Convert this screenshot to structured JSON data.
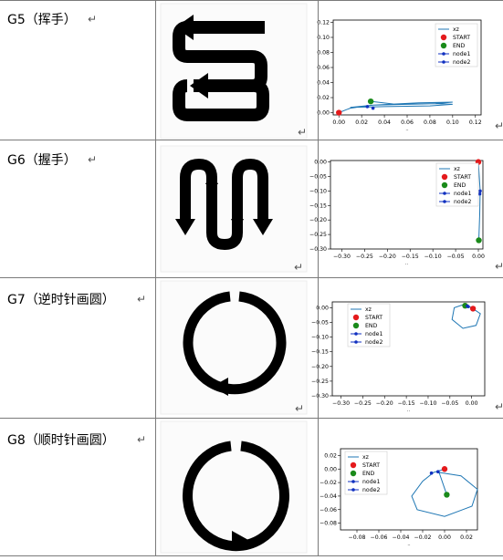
{
  "rows": [
    {
      "label": "G5（挥手）",
      "para_mark": "↵",
      "chart": {
        "type": "line",
        "xticks": [
          "0.00",
          "0.02",
          "0.04",
          "0.06",
          "0.08",
          "0.10",
          "0.12"
        ],
        "yticks": [
          "0.12",
          "0.10",
          "0.08",
          "0.06",
          "0.04",
          "0.02",
          "0.00"
        ],
        "xlim": [
          -0.005,
          0.125
        ],
        "ylim": [
          -0.003,
          0.123
        ],
        "legend": [
          "xz",
          "START",
          "END",
          "node1",
          "node2"
        ],
        "xlabel": "..",
        "series_xz": [
          [
            0.0,
            0.0
          ],
          [
            0.01,
            0.006
          ],
          [
            0.03,
            0.01
          ],
          [
            0.06,
            0.011
          ],
          [
            0.085,
            0.012
          ],
          [
            0.1,
            0.011
          ],
          [
            0.08,
            0.009
          ],
          [
            0.04,
            0.008
          ],
          [
            0.01,
            0.007
          ],
          [
            0.03,
            0.01
          ],
          [
            0.07,
            0.013
          ],
          [
            0.1,
            0.014
          ],
          [
            0.085,
            0.012
          ],
          [
            0.05,
            0.011
          ],
          [
            0.028,
            0.015
          ]
        ],
        "start": [
          0.0,
          0.0
        ],
        "end": [
          0.028,
          0.015
        ],
        "node1": [
          0.025,
          0.008
        ],
        "node2": [
          0.03,
          0.006
        ]
      }
    },
    {
      "label": "G6（握手）",
      "para_mark": "↵",
      "chart": {
        "type": "line",
        "xticks": [
          "−0.30",
          "−0.25",
          "−0.20",
          "−0.15",
          "−0.10",
          "−0.05",
          "0.00"
        ],
        "yticks": [
          "0.00",
          "−0.05",
          "−0.10",
          "−0.15",
          "−0.20",
          "−0.25",
          "−0.30"
        ],
        "xlim": [
          -0.325,
          0.01
        ],
        "ylim": [
          -0.3,
          0.005
        ],
        "legend": [
          "xz",
          "START",
          "END",
          "node1",
          "node2"
        ],
        "xlabel": "..",
        "series_xz": [
          [
            0.0,
            0.0
          ],
          [
            0.002,
            -0.05
          ],
          [
            0.004,
            -0.1
          ],
          [
            0.003,
            -0.18
          ],
          [
            0.001,
            -0.27
          ]
        ],
        "start": [
          0.0,
          0.0
        ],
        "end": [
          0.001,
          -0.27
        ],
        "node1": [
          0.004,
          -0.1
        ],
        "node2": [
          0.003,
          -0.11
        ]
      }
    },
    {
      "label": "G7（逆时针画圆）",
      "para_mark": "↵",
      "chart": {
        "type": "line",
        "xticks": [
          "−0.30",
          "−0.25",
          "−0.20",
          "−0.15",
          "−0.10",
          "−0.05",
          "0.00"
        ],
        "yticks": [
          "0.00",
          "−0.05",
          "−0.10",
          "−0.15",
          "−0.20",
          "−0.25",
          "−0.30"
        ],
        "xlim": [
          -0.32,
          0.03
        ],
        "ylim": [
          -0.3,
          0.02
        ],
        "legend": [
          "xz",
          "START",
          "END",
          "node1",
          "node2"
        ],
        "xlabel": "..",
        "series_xz": [
          [
            0.0,
            0.0
          ],
          [
            -0.02,
            0.01
          ],
          [
            -0.04,
            0.0
          ],
          [
            -0.045,
            -0.04
          ],
          [
            -0.02,
            -0.07
          ],
          [
            0.01,
            -0.06
          ],
          [
            0.02,
            -0.02
          ],
          [
            0.0,
            0.0
          ],
          [
            -0.015,
            0.01
          ]
        ],
        "start": [
          0.003,
          -0.003
        ],
        "end": [
          -0.015,
          0.007
        ],
        "node1": [
          -0.01,
          0.006
        ],
        "node2": [
          -0.008,
          0.004
        ]
      }
    },
    {
      "label": "G8（顺时针画圆）",
      "para_mark": "↵",
      "chart": {
        "type": "line",
        "xticks": [
          "−0.08",
          "−0.06",
          "−0.04",
          "−0.02",
          "0.00",
          "0.02"
        ],
        "yticks": [
          "0.02",
          "0.00",
          "−0.02",
          "−0.04",
          "−0.06",
          "−0.08"
        ],
        "xlim": [
          -0.095,
          0.03
        ],
        "ylim": [
          -0.09,
          0.03
        ],
        "legend": [
          "xz",
          "START",
          "END",
          "node1",
          "node2"
        ],
        "xlabel": "..",
        "series_xz": [
          [
            0.0,
            0.0
          ],
          [
            -0.01,
            -0.005
          ],
          [
            -0.02,
            -0.018
          ],
          [
            -0.03,
            -0.04
          ],
          [
            -0.025,
            -0.06
          ],
          [
            0.0,
            -0.07
          ],
          [
            0.025,
            -0.055
          ],
          [
            0.03,
            -0.03
          ],
          [
            0.015,
            -0.01
          ],
          [
            -0.005,
            -0.005
          ],
          [
            0.002,
            -0.038
          ]
        ],
        "start": [
          0.0,
          0.0
        ],
        "end": [
          0.002,
          -0.038
        ],
        "node1": [
          -0.012,
          -0.006
        ],
        "node2": [
          -0.006,
          -0.004
        ]
      }
    }
  ],
  "colors": {
    "line": "#1f77b4",
    "start": "#e41a1c",
    "end": "#1a8a1a",
    "node": "#1030c0",
    "grid": "#e8e8e8",
    "table_border": "#7a7a7a",
    "gesture": "#000000"
  }
}
